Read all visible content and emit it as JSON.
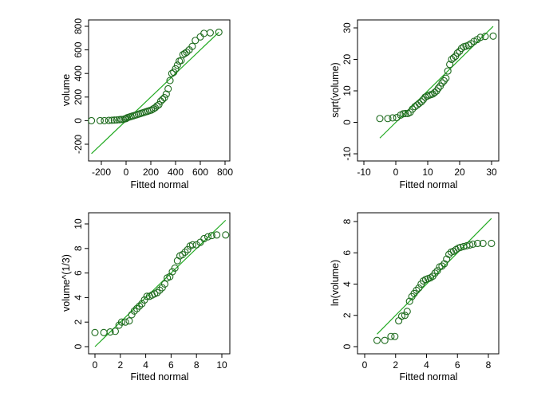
{
  "colors": {
    "points": "#1e6b1e",
    "line": "#22aa22",
    "frame": "#000000"
  },
  "chart_data": [
    {
      "type": "scatter",
      "xlabel": "Fitted normal",
      "ylabel": "volume",
      "xticks": [
        -200,
        0,
        200,
        400,
        600,
        800
      ],
      "yticks": [
        -200,
        0,
        200,
        400,
        600,
        800
      ],
      "grid": false,
      "reference_line": [
        [
          -280,
          -280
        ],
        [
          750,
          750
        ]
      ],
      "points": [
        [
          -280,
          0
        ],
        [
          -210,
          0
        ],
        [
          -175,
          0
        ],
        [
          -140,
          2
        ],
        [
          -115,
          3
        ],
        [
          -95,
          5
        ],
        [
          -75,
          6
        ],
        [
          -55,
          8
        ],
        [
          -40,
          10
        ],
        [
          -25,
          10
        ],
        [
          -10,
          15
        ],
        [
          0,
          18
        ],
        [
          10,
          25
        ],
        [
          25,
          30
        ],
        [
          40,
          35
        ],
        [
          55,
          40
        ],
        [
          70,
          45
        ],
        [
          85,
          50
        ],
        [
          100,
          55
        ],
        [
          115,
          60
        ],
        [
          130,
          65
        ],
        [
          145,
          70
        ],
        [
          160,
          75
        ],
        [
          175,
          80
        ],
        [
          190,
          85
        ],
        [
          205,
          90
        ],
        [
          220,
          100
        ],
        [
          235,
          110
        ],
        [
          250,
          125
        ],
        [
          265,
          135
        ],
        [
          280,
          165
        ],
        [
          295,
          180
        ],
        [
          310,
          195
        ],
        [
          325,
          225
        ],
        [
          340,
          270
        ],
        [
          355,
          340
        ],
        [
          370,
          400
        ],
        [
          385,
          410
        ],
        [
          400,
          440
        ],
        [
          415,
          470
        ],
        [
          430,
          505
        ],
        [
          445,
          510
        ],
        [
          460,
          560
        ],
        [
          475,
          570
        ],
        [
          490,
          580
        ],
        [
          510,
          600
        ],
        [
          535,
          630
        ],
        [
          560,
          680
        ],
        [
          600,
          710
        ],
        [
          630,
          740
        ],
        [
          680,
          745
        ],
        [
          750,
          750
        ]
      ]
    },
    {
      "type": "scatter",
      "xlabel": "Fitted normal",
      "ylabel": "sqrt(volume)",
      "xticks": [
        -10,
        0,
        10,
        20,
        30
      ],
      "yticks": [
        -10,
        0,
        10,
        20,
        30
      ],
      "grid": false,
      "reference_line": [
        [
          -5,
          -5
        ],
        [
          30.5,
          30.5
        ]
      ],
      "points": [
        [
          -5,
          1.2
        ],
        [
          -2.5,
          1.2
        ],
        [
          -1,
          1.4
        ],
        [
          0.3,
          1.5
        ],
        [
          1.5,
          2.3
        ],
        [
          2.3,
          2.7
        ],
        [
          3,
          2.8
        ],
        [
          3.8,
          2.8
        ],
        [
          4.5,
          3.2
        ],
        [
          5.2,
          4.2
        ],
        [
          6,
          5
        ],
        [
          6.7,
          5.5
        ],
        [
          7.3,
          6
        ],
        [
          8,
          6.5
        ],
        [
          8.6,
          7.2
        ],
        [
          9.2,
          8
        ],
        [
          9.8,
          8.3
        ],
        [
          10.4,
          8.6
        ],
        [
          11,
          8.8
        ],
        [
          11.6,
          9
        ],
        [
          12.2,
          9.5
        ],
        [
          12.8,
          10
        ],
        [
          13.3,
          10.8
        ],
        [
          13.9,
          11.5
        ],
        [
          14.5,
          12.5
        ],
        [
          15.1,
          13.2
        ],
        [
          15.7,
          14
        ],
        [
          16.3,
          16.3
        ],
        [
          16.9,
          18.4
        ],
        [
          17.5,
          20
        ],
        [
          18.1,
          20.5
        ],
        [
          18.7,
          21
        ],
        [
          19.3,
          22
        ],
        [
          20,
          22.6
        ],
        [
          20.6,
          23.5
        ],
        [
          21.3,
          24
        ],
        [
          22,
          24.2
        ],
        [
          22.8,
          24.5
        ],
        [
          23.6,
          25
        ],
        [
          24.5,
          25.7
        ],
        [
          25.5,
          26.3
        ],
        [
          26.5,
          27
        ],
        [
          28,
          27.3
        ],
        [
          30.5,
          27.4
        ]
      ]
    },
    {
      "type": "scatter",
      "xlabel": "Fitted normal",
      "ylabel": "volume^(1/3)",
      "xticks": [
        0,
        2,
        4,
        6,
        8,
        10
      ],
      "yticks": [
        0,
        2,
        4,
        6,
        8,
        10
      ],
      "grid": false,
      "reference_line": [
        [
          0,
          0
        ],
        [
          10.3,
          10.3
        ]
      ],
      "points": [
        [
          0,
          1.15
        ],
        [
          0.7,
          1.15
        ],
        [
          1.2,
          1.2
        ],
        [
          1.6,
          1.25
        ],
        [
          1.9,
          1.75
        ],
        [
          2.1,
          2
        ],
        [
          2.4,
          2
        ],
        [
          2.7,
          2.1
        ],
        [
          2.9,
          2.6
        ],
        [
          3.1,
          2.9
        ],
        [
          3.3,
          3.1
        ],
        [
          3.5,
          3.3
        ],
        [
          3.7,
          3.5
        ],
        [
          3.9,
          3.8
        ],
        [
          4.1,
          4.1
        ],
        [
          4.3,
          4.1
        ],
        [
          4.5,
          4.2
        ],
        [
          4.7,
          4.3
        ],
        [
          4.9,
          4.4
        ],
        [
          5.1,
          4.6
        ],
        [
          5.3,
          4.8
        ],
        [
          5.5,
          5.1
        ],
        [
          5.7,
          5.6
        ],
        [
          5.9,
          5.7
        ],
        [
          6.1,
          6.1
        ],
        [
          6.3,
          6.4
        ],
        [
          6.5,
          7
        ],
        [
          6.7,
          7.4
        ],
        [
          6.9,
          7.5
        ],
        [
          7.1,
          7.7
        ],
        [
          7.3,
          7.9
        ],
        [
          7.5,
          8.2
        ],
        [
          7.7,
          8.3
        ],
        [
          8,
          8.3
        ],
        [
          8.3,
          8.5
        ],
        [
          8.6,
          8.8
        ],
        [
          8.9,
          8.95
        ],
        [
          9.2,
          9.05
        ],
        [
          9.6,
          9.1
        ],
        [
          10.3,
          9.1
        ]
      ]
    },
    {
      "type": "scatter",
      "xlabel": "Fitted normal",
      "ylabel": "ln(volume)",
      "xticks": [
        0,
        2,
        4,
        6,
        8
      ],
      "yticks": [
        0,
        2,
        4,
        6,
        8
      ],
      "grid": false,
      "reference_line": [
        [
          0.8,
          0.8
        ],
        [
          8.2,
          8.2
        ]
      ],
      "points": [
        [
          0.8,
          0.4
        ],
        [
          1.3,
          0.4
        ],
        [
          1.7,
          0.65
        ],
        [
          1.95,
          0.65
        ],
        [
          2.2,
          1.65
        ],
        [
          2.4,
          1.95
        ],
        [
          2.6,
          2
        ],
        [
          2.75,
          2.25
        ],
        [
          2.9,
          2.9
        ],
        [
          3.05,
          3.2
        ],
        [
          3.2,
          3.4
        ],
        [
          3.35,
          3.6
        ],
        [
          3.5,
          3.75
        ],
        [
          3.65,
          4
        ],
        [
          3.8,
          4.2
        ],
        [
          3.95,
          4.3
        ],
        [
          4.1,
          4.35
        ],
        [
          4.25,
          4.4
        ],
        [
          4.4,
          4.5
        ],
        [
          4.55,
          4.7
        ],
        [
          4.7,
          4.85
        ],
        [
          4.85,
          5.1
        ],
        [
          5.0,
          5.15
        ],
        [
          5.15,
          5.3
        ],
        [
          5.3,
          5.6
        ],
        [
          5.45,
          5.9
        ],
        [
          5.6,
          6.05
        ],
        [
          5.75,
          6.1
        ],
        [
          5.9,
          6.2
        ],
        [
          6.05,
          6.3
        ],
        [
          6.2,
          6.35
        ],
        [
          6.4,
          6.4
        ],
        [
          6.6,
          6.45
        ],
        [
          6.8,
          6.5
        ],
        [
          7,
          6.55
        ],
        [
          7.3,
          6.6
        ],
        [
          7.65,
          6.6
        ],
        [
          8.2,
          6.6
        ]
      ]
    }
  ]
}
